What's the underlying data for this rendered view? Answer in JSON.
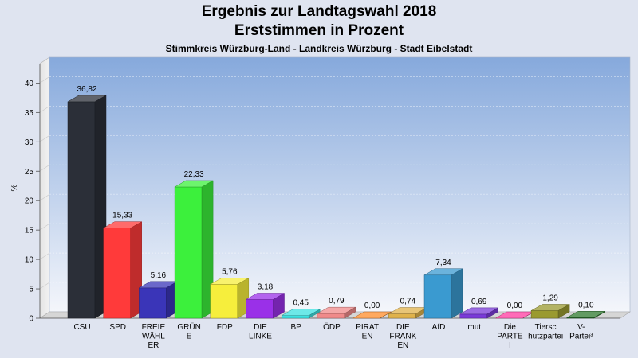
{
  "header": {
    "title_line1": "Ergebnis zur Landtagswahl 2018",
    "title_line2": "Erststimmen in Prozent",
    "subtitle": "Stimmkreis Würzburg-Land - Landkreis Würzburg - Stadt Eibelstadt"
  },
  "chart_data": {
    "type": "bar",
    "title": "Ergebnis zur Landtagswahl 2018 Erststimmen in Prozent",
    "subtitle": "Stimmkreis Würzburg-Land - Landkreis Würzburg - Stadt Eibelstadt",
    "ylabel": "%",
    "ylim": [
      0,
      42
    ],
    "yticks": [
      0,
      5,
      10,
      15,
      20,
      25,
      30,
      35,
      40
    ],
    "grid": true,
    "categories": [
      [
        "CSU"
      ],
      [
        "SPD"
      ],
      [
        "FREIE",
        "WÄHL",
        "ER"
      ],
      [
        "GRÜN",
        "E"
      ],
      [
        "FDP"
      ],
      [
        "DIE",
        "LINKE"
      ],
      [
        "BP"
      ],
      [
        "ÖDP"
      ],
      [
        "PIRAT",
        "EN"
      ],
      [
        "DIE",
        "FRANK",
        "EN"
      ],
      [
        "AfD"
      ],
      [
        "mut"
      ],
      [
        "Die",
        "PARTE",
        "I"
      ],
      [
        "Tiersc",
        "hutzpartei"
      ],
      [
        "V-",
        "Partei³"
      ]
    ],
    "values": [
      36.82,
      15.33,
      5.16,
      22.33,
      5.76,
      3.18,
      0.45,
      0.79,
      0.0,
      0.74,
      7.34,
      0.69,
      0.0,
      1.29,
      0.1
    ],
    "value_labels": [
      "36,82",
      "15,33",
      "5,16",
      "22,33",
      "5,76",
      "3,18",
      "0,45",
      "0,79",
      "0,00",
      "0,74",
      "7,34",
      "0,69",
      "0,00",
      "1,29",
      "0,10"
    ],
    "colors": [
      "#2b2f38",
      "#ff3a3a",
      "#3a35b8",
      "#3cf03c",
      "#f6ee3c",
      "#9a30e8",
      "#3ce0e0",
      "#f08a8a",
      "#ff8c2a",
      "#e0b24a",
      "#3a9ad0",
      "#7a3ad8",
      "#ff3aa0",
      "#9a9a30",
      "#2e7a2e"
    ]
  }
}
